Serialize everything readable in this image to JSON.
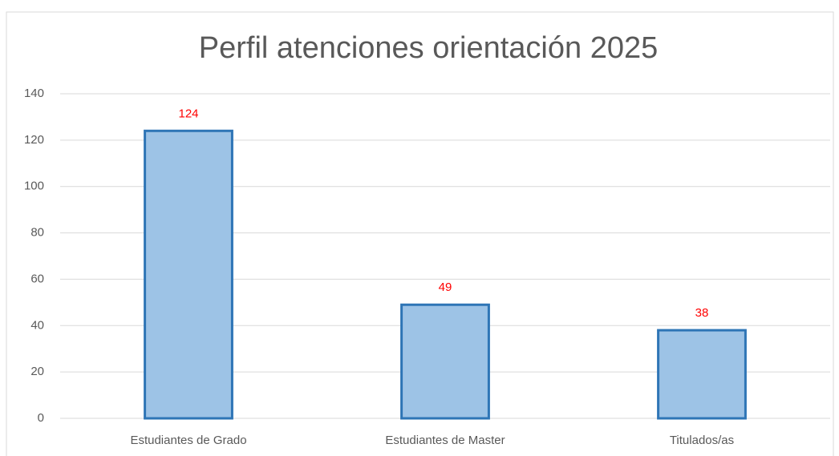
{
  "chart_data": {
    "type": "bar",
    "title": "Perfil atenciones orientación 2025",
    "categories": [
      "Estudiantes de Grado",
      "Estudiantes de Master",
      "Titulados/as"
    ],
    "values": [
      124,
      49,
      38
    ],
    "color": "#9dc3e6",
    "edge_color": "#2e75b6",
    "label_color": "#ff0000",
    "ylim": [
      0,
      140
    ],
    "yticks": [
      0,
      20,
      40,
      60,
      80,
      100,
      120,
      140
    ],
    "grid": true
  }
}
